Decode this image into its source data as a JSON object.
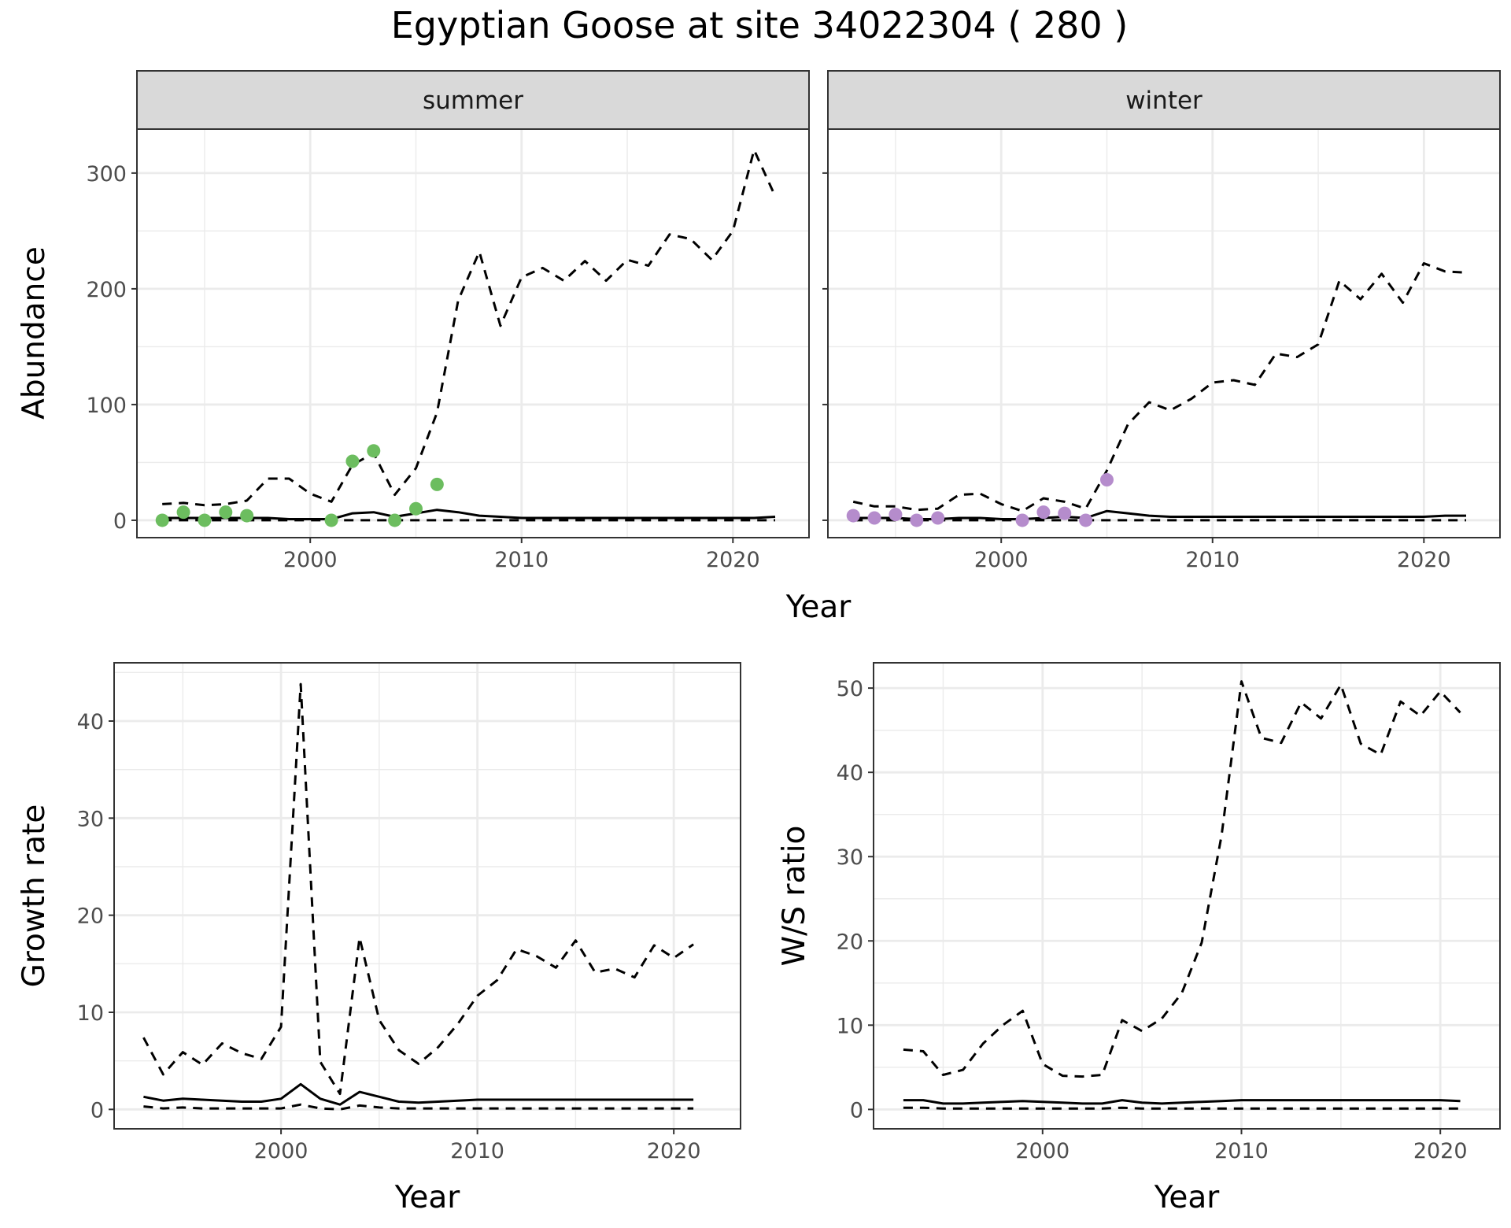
{
  "title": "Egyptian Goose at site 34022304 ( 280 )",
  "colors": {
    "summer_points": "#6cbd5f",
    "winter_points": "#b58ccc",
    "lines": "#000000",
    "panel_border": "#333333",
    "strip_fill": "#d9d9d9",
    "grid": "#ebebeb"
  },
  "chart_data": [
    {
      "type": "line",
      "facet": "summer",
      "xlabel": "Year",
      "ylabel": "Abundance",
      "xlim": [
        1991.8,
        2023.6
      ],
      "ylim": [
        -15,
        338
      ],
      "x_ticks": [
        2000,
        2010,
        2020
      ],
      "y_ticks": [
        0,
        100,
        200,
        300
      ],
      "grid": true,
      "series": [
        {
          "style": "solid",
          "x": [
            1993,
            1994,
            1995,
            1996,
            1997,
            1998,
            1999,
            2000,
            2001,
            2002,
            2003,
            2004,
            2005,
            2006,
            2007,
            2008,
            2009,
            2010,
            2011,
            2012,
            2013,
            2014,
            2015,
            2016,
            2017,
            2018,
            2019,
            2020,
            2021,
            2022
          ],
          "y": [
            2,
            2,
            2,
            2,
            2,
            2,
            1,
            1,
            1,
            6,
            7,
            3,
            6,
            9,
            7,
            4,
            3,
            2,
            2,
            2,
            2,
            2,
            2,
            2,
            2,
            2,
            2,
            2,
            2,
            3
          ]
        },
        {
          "style": "dashed",
          "x": [
            1993,
            1994,
            1995,
            1996,
            1997,
            1998,
            1999,
            2000,
            2001,
            2002,
            2003,
            2004,
            2005,
            2006,
            2007,
            2008,
            2009,
            2010,
            2011,
            2012,
            2013,
            2014,
            2015,
            2016,
            2017,
            2018,
            2019,
            2020,
            2021,
            2022
          ],
          "y": [
            14,
            15,
            13,
            14,
            17,
            36,
            36,
            23,
            16,
            48,
            58,
            22,
            45,
            93,
            190,
            232,
            168,
            210,
            218,
            207,
            224,
            207,
            225,
            220,
            247,
            243,
            225,
            250,
            320,
            280
          ]
        },
        {
          "style": "dashed",
          "x": [
            1993,
            1994,
            1995,
            1996,
            1997,
            1998,
            1999,
            2000,
            2001,
            2002,
            2003,
            2004,
            2005,
            2006,
            2007,
            2008,
            2009,
            2010,
            2011,
            2012,
            2013,
            2014,
            2015,
            2016,
            2017,
            2018,
            2019,
            2020,
            2021,
            2022
          ],
          "y": [
            0,
            0,
            0,
            0,
            0,
            0,
            0,
            0,
            0,
            0,
            0,
            0,
            0,
            0,
            0,
            0,
            0,
            0,
            0,
            0,
            0,
            0,
            0,
            0,
            0,
            0,
            0,
            0,
            0,
            0
          ]
        },
        {
          "style": "points",
          "x": [
            1993,
            1994,
            1995,
            1996,
            1997,
            2001,
            2002,
            2003,
            2004,
            2005,
            2006
          ],
          "y": [
            0,
            7,
            0,
            7,
            4,
            0,
            51,
            60,
            0,
            10,
            31
          ]
        }
      ]
    },
    {
      "type": "line",
      "facet": "winter",
      "xlabel": "Year",
      "ylabel": "Abundance",
      "xlim": [
        1991.8,
        2023.6
      ],
      "ylim": [
        -15,
        338
      ],
      "x_ticks": [
        2000,
        2010,
        2020
      ],
      "y_ticks": [
        0,
        100,
        200,
        300
      ],
      "grid": true,
      "series": [
        {
          "style": "solid",
          "x": [
            1993,
            1994,
            1995,
            1996,
            1997,
            1998,
            1999,
            2000,
            2001,
            2002,
            2003,
            2004,
            2005,
            2006,
            2007,
            2008,
            2009,
            2010,
            2011,
            2012,
            2013,
            2014,
            2015,
            2016,
            2017,
            2018,
            2019,
            2020,
            2021,
            2022
          ],
          "y": [
            2,
            2,
            2,
            1,
            1,
            2,
            2,
            1,
            1,
            2,
            3,
            2,
            8,
            6,
            4,
            3,
            3,
            3,
            3,
            3,
            3,
            3,
            3,
            3,
            3,
            3,
            3,
            3,
            4,
            4
          ]
        },
        {
          "style": "dashed",
          "x": [
            1993,
            1994,
            1995,
            1996,
            1997,
            1998,
            1999,
            2000,
            2001,
            2002,
            2003,
            2004,
            2005,
            2006,
            2007,
            2008,
            2009,
            2010,
            2011,
            2012,
            2013,
            2014,
            2015,
            2016,
            2017,
            2018,
            2019,
            2020,
            2021,
            2022
          ],
          "y": [
            16,
            12,
            12,
            9,
            10,
            22,
            23,
            14,
            8,
            19,
            16,
            10,
            43,
            83,
            102,
            95,
            105,
            119,
            121,
            117,
            144,
            141,
            152,
            207,
            191,
            213,
            188,
            222,
            215,
            214
          ]
        },
        {
          "style": "dashed",
          "x": [
            1993,
            1994,
            1995,
            1996,
            1997,
            1998,
            1999,
            2000,
            2001,
            2002,
            2003,
            2004,
            2005,
            2006,
            2007,
            2008,
            2009,
            2010,
            2011,
            2012,
            2013,
            2014,
            2015,
            2016,
            2017,
            2018,
            2019,
            2020,
            2021,
            2022
          ],
          "y": [
            0,
            0,
            0,
            0,
            0,
            0,
            0,
            0,
            0,
            0,
            0,
            0,
            0,
            0,
            0,
            0,
            0,
            0,
            0,
            0,
            0,
            0,
            0,
            0,
            0,
            0,
            0,
            0,
            0,
            0
          ]
        },
        {
          "style": "points",
          "x": [
            1993,
            1994,
            1995,
            1996,
            1997,
            2001,
            2002,
            2003,
            2004,
            2005
          ],
          "y": [
            4,
            2,
            5,
            0,
            2,
            0,
            7,
            6,
            0,
            35
          ]
        }
      ]
    },
    {
      "type": "line",
      "xlabel": "Year",
      "ylabel": "Growth rate",
      "xlim": [
        1991.5,
        2023.4
      ],
      "ylim": [
        -2,
        46
      ],
      "x_ticks": [
        2000,
        2010,
        2020
      ],
      "y_ticks": [
        0,
        10,
        20,
        30,
        40
      ],
      "grid": true,
      "series": [
        {
          "style": "solid",
          "x": [
            1993,
            1994,
            1995,
            1996,
            1997,
            1998,
            1999,
            2000,
            2001,
            2002,
            2003,
            2004,
            2005,
            2006,
            2007,
            2008,
            2009,
            2010,
            2011,
            2012,
            2013,
            2014,
            2015,
            2016,
            2017,
            2018,
            2019,
            2020,
            2021
          ],
          "y": [
            1.3,
            0.9,
            1.1,
            1.0,
            0.9,
            0.8,
            0.8,
            1.1,
            2.6,
            1.1,
            0.5,
            1.8,
            1.3,
            0.8,
            0.7,
            0.8,
            0.9,
            1.0,
            1.0,
            1.0,
            1.0,
            1.0,
            1.0,
            1.0,
            1.0,
            1.0,
            1.0,
            1.0,
            1.0
          ]
        },
        {
          "style": "dashed",
          "x": [
            1993,
            1994,
            1995,
            1996,
            1997,
            1998,
            1999,
            2000,
            2001,
            2002,
            2003,
            2004,
            2005,
            2006,
            2007,
            2008,
            2009,
            2010,
            2011,
            2012,
            2013,
            2014,
            2015,
            2016,
            2017,
            2018,
            2019,
            2020,
            2021
          ],
          "y": [
            7.4,
            3.6,
            5.9,
            4.6,
            6.8,
            5.8,
            5.2,
            8.5,
            43.8,
            4.9,
            1.6,
            17.7,
            9.2,
            6.1,
            4.7,
            6.4,
            8.8,
            11.7,
            13.3,
            16.5,
            15.8,
            14.6,
            17.4,
            14.1,
            14.5,
            13.6,
            16.9,
            15.6,
            17.0
          ]
        },
        {
          "style": "dashed",
          "x": [
            1993,
            1994,
            1995,
            1996,
            1997,
            1998,
            1999,
            2000,
            2001,
            2002,
            2003,
            2004,
            2005,
            2006,
            2007,
            2008,
            2009,
            2010,
            2011,
            2012,
            2013,
            2014,
            2015,
            2016,
            2017,
            2018,
            2019,
            2020,
            2021
          ],
          "y": [
            0.3,
            0.1,
            0.2,
            0.1,
            0.1,
            0.1,
            0.1,
            0.1,
            0.5,
            0.1,
            0.0,
            0.4,
            0.2,
            0.1,
            0.1,
            0.1,
            0.1,
            0.1,
            0.1,
            0.1,
            0.1,
            0.1,
            0.1,
            0.1,
            0.1,
            0.1,
            0.1,
            0.1,
            0.1
          ]
        }
      ]
    },
    {
      "type": "line",
      "xlabel": "Year",
      "ylabel": "W/S ratio",
      "xlim": [
        1991.5,
        2023.0
      ],
      "ylim": [
        -2.3,
        53
      ],
      "x_ticks": [
        2000,
        2010,
        2020
      ],
      "y_ticks": [
        0,
        10,
        20,
        30,
        40,
        50
      ],
      "grid": true,
      "series": [
        {
          "style": "solid",
          "x": [
            1993,
            1994,
            1995,
            1996,
            1997,
            1998,
            1999,
            2000,
            2001,
            2002,
            2003,
            2004,
            2005,
            2006,
            2007,
            2008,
            2009,
            2010,
            2011,
            2012,
            2013,
            2014,
            2015,
            2016,
            2017,
            2018,
            2019,
            2020,
            2021
          ],
          "y": [
            1.1,
            1.1,
            0.7,
            0.7,
            0.8,
            0.9,
            1.0,
            0.9,
            0.8,
            0.7,
            0.7,
            1.1,
            0.8,
            0.7,
            0.8,
            0.9,
            1.0,
            1.1,
            1.1,
            1.1,
            1.1,
            1.1,
            1.1,
            1.1,
            1.1,
            1.1,
            1.1,
            1.1,
            1.0
          ]
        },
        {
          "style": "dashed",
          "x": [
            1993,
            1994,
            1995,
            1996,
            1997,
            1998,
            1999,
            2000,
            2001,
            2002,
            2003,
            2004,
            2005,
            2006,
            2007,
            2008,
            2009,
            2010,
            2011,
            2012,
            2013,
            2014,
            2015,
            2016,
            2017,
            2018,
            2019,
            2020,
            2021
          ],
          "y": [
            7.1,
            6.9,
            4.1,
            4.7,
            7.8,
            10.0,
            11.7,
            5.4,
            4.0,
            3.9,
            4.1,
            10.6,
            9.3,
            10.8,
            13.8,
            19.8,
            32.5,
            50.8,
            44.1,
            43.5,
            48.3,
            46.4,
            50.4,
            43.4,
            42.1,
            48.4,
            46.7,
            49.6,
            47.1
          ]
        },
        {
          "style": "dashed",
          "x": [
            1993,
            1994,
            1995,
            1996,
            1997,
            1998,
            1999,
            2000,
            2001,
            2002,
            2003,
            2004,
            2005,
            2006,
            2007,
            2008,
            2009,
            2010,
            2011,
            2012,
            2013,
            2014,
            2015,
            2016,
            2017,
            2018,
            2019,
            2020,
            2021
          ],
          "y": [
            0.2,
            0.2,
            0.1,
            0.1,
            0.1,
            0.1,
            0.1,
            0.1,
            0.1,
            0.1,
            0.1,
            0.2,
            0.1,
            0.1,
            0.1,
            0.1,
            0.1,
            0.1,
            0.1,
            0.1,
            0.1,
            0.1,
            0.1,
            0.1,
            0.1,
            0.1,
            0.1,
            0.1,
            0.1
          ]
        }
      ]
    }
  ]
}
